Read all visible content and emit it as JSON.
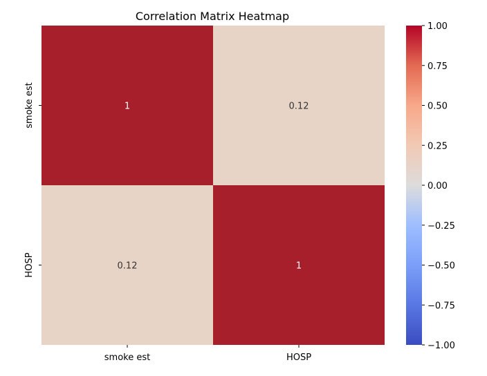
{
  "chart_data": {
    "type": "heatmap",
    "title": "Correlation Matrix Heatmap",
    "x_categories": [
      "smoke est",
      "HOSP"
    ],
    "y_categories": [
      "smoke est",
      "HOSP"
    ],
    "values": [
      [
        1.0,
        0.12
      ],
      [
        0.12,
        1.0
      ]
    ],
    "annotations": [
      [
        "1",
        "0.12"
      ],
      [
        "0.12",
        "1"
      ]
    ],
    "colormap": "coolwarm",
    "vmin": -1.0,
    "vmax": 1.0,
    "colorbar_ticks": [
      "1.00",
      "0.75",
      "0.50",
      "0.25",
      "0.00",
      "−0.25",
      "−0.50",
      "−0.75",
      "−1.00"
    ],
    "colorbar_tick_values": [
      1.0,
      0.75,
      0.5,
      0.25,
      0.0,
      -0.25,
      -0.5,
      -0.75,
      -1.0
    ],
    "colors": {
      "cell_high": "#a61f2a",
      "cell_mid": "#e8d4c7",
      "annot_on_dark": "#ffffff",
      "annot_on_light": "#333333"
    }
  }
}
